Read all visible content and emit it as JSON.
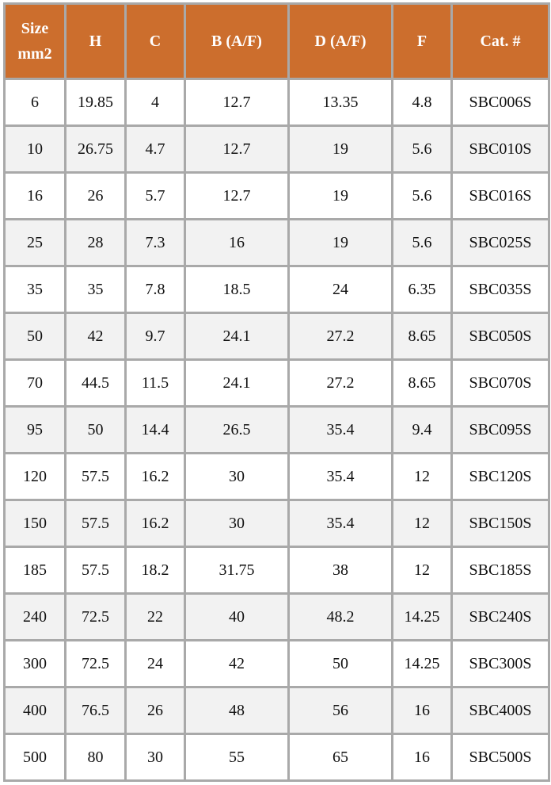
{
  "table": {
    "header_color": "#cc6e2d",
    "headers": [
      "Size mm2",
      "H",
      "C",
      "B (A/F)",
      "D (A/F)",
      "F",
      "Cat. #"
    ],
    "header_size_line1": "Size",
    "header_size_line2": "mm2",
    "rows": [
      [
        "6",
        "19.85",
        "4",
        "12.7",
        "13.35",
        "4.8",
        "SBC006S"
      ],
      [
        "10",
        "26.75",
        "4.7",
        "12.7",
        "19",
        "5.6",
        "SBC010S"
      ],
      [
        "16",
        "26",
        "5.7",
        "12.7",
        "19",
        "5.6",
        "SBC016S"
      ],
      [
        "25",
        "28",
        "7.3",
        "16",
        "19",
        "5.6",
        "SBC025S"
      ],
      [
        "35",
        "35",
        "7.8",
        "18.5",
        "24",
        "6.35",
        "SBC035S"
      ],
      [
        "50",
        "42",
        "9.7",
        "24.1",
        "27.2",
        "8.65",
        "SBC050S"
      ],
      [
        "70",
        "44.5",
        "11.5",
        "24.1",
        "27.2",
        "8.65",
        "SBC070S"
      ],
      [
        "95",
        "50",
        "14.4",
        "26.5",
        "35.4",
        "9.4",
        "SBC095S"
      ],
      [
        "120",
        "57.5",
        "16.2",
        "30",
        "35.4",
        "12",
        "SBC120S"
      ],
      [
        "150",
        "57.5",
        "16.2",
        "30",
        "35.4",
        "12",
        "SBC150S"
      ],
      [
        "185",
        "57.5",
        "18.2",
        "31.75",
        "38",
        "12",
        "SBC185S"
      ],
      [
        "240",
        "72.5",
        "22",
        "40",
        "48.2",
        "14.25",
        "SBC240S"
      ],
      [
        "300",
        "72.5",
        "24",
        "42",
        "50",
        "14.25",
        "SBC300S"
      ],
      [
        "400",
        "76.5",
        "26",
        "48",
        "56",
        "16",
        "SBC400S"
      ],
      [
        "500",
        "80",
        "30",
        "55",
        "65",
        "16",
        "SBC500S"
      ]
    ]
  }
}
